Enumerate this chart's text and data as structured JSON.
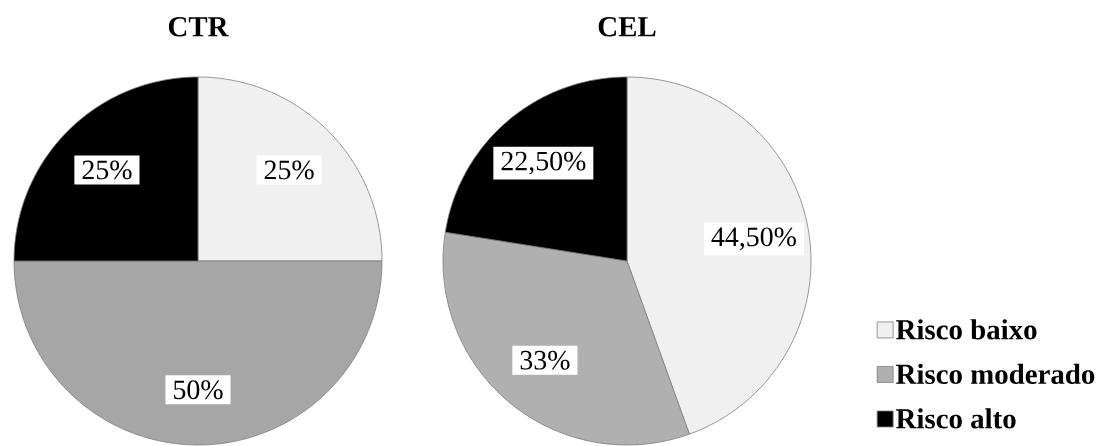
{
  "chart_data": [
    {
      "type": "pie",
      "title": "CTR",
      "categories": [
        null,
        null,
        null
      ],
      "values": [
        25,
        50,
        25
      ],
      "colors": [
        "#f0f0f0",
        "#a6a6a6",
        "#000000"
      ],
      "value_labels": [
        "25%",
        "50%",
        "25%"
      ],
      "legend": false
    },
    {
      "type": "pie",
      "title": "CEL",
      "categories": [
        "Risco baixo",
        "Risco moderado",
        "Risco alto"
      ],
      "values": [
        44.5,
        33,
        22.5
      ],
      "colors": [
        "#f0f0f0",
        "#b0b0b0",
        "#000000"
      ],
      "value_labels": [
        "44,50%",
        "33%",
        "22,50%"
      ],
      "legend": "bottom right"
    }
  ]
}
